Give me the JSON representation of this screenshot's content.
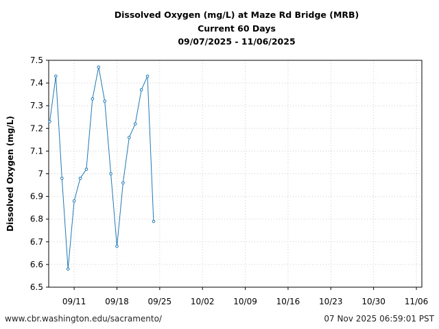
{
  "chart_data": {
    "type": "line",
    "title": [
      "Dissolved Oxygen (mg/L) at Maze Rd Bridge (MRB)",
      "Current 60 Days",
      "09/07/2025 - 11/06/2025"
    ],
    "xlabel": "",
    "ylabel": "Dissolved Oxygen (mg/L)",
    "ylim": [
      6.5,
      7.5
    ],
    "xlim": [
      "2025-09-06T20:00",
      "2025-11-06T21:30"
    ],
    "yticks": [
      6.5,
      6.6,
      6.7,
      6.8,
      6.9,
      7.0,
      7.1,
      7.2,
      7.3,
      7.4,
      7.5
    ],
    "ytick_labels": [
      "6.5",
      "6.6",
      "6.7",
      "6.8",
      "6.9",
      "7",
      "7.1",
      "7.2",
      "7.3",
      "7.4",
      "7.5"
    ],
    "xticks": [
      "2025-09-11",
      "2025-09-18",
      "2025-09-25",
      "2025-10-02",
      "2025-10-09",
      "2025-10-16",
      "2025-10-23",
      "2025-10-30",
      "2025-11-06"
    ],
    "xtick_labels": [
      "09/11",
      "09/18",
      "09/25",
      "10/02",
      "10/09",
      "10/16",
      "10/23",
      "10/30",
      "11/06"
    ],
    "grid": true,
    "color": "#1f77b4",
    "x": [
      "2025-09-07",
      "2025-09-08",
      "2025-09-09",
      "2025-09-10",
      "2025-09-11",
      "2025-09-12",
      "2025-09-13",
      "2025-09-14",
      "2025-09-15",
      "2025-09-16",
      "2025-09-17",
      "2025-09-18",
      "2025-09-19",
      "2025-09-20",
      "2025-09-21",
      "2025-09-22",
      "2025-09-23",
      "2025-09-24"
    ],
    "values": [
      7.23,
      7.43,
      6.98,
      6.58,
      6.88,
      6.98,
      7.02,
      7.33,
      7.47,
      7.32,
      7.0,
      6.68,
      6.96,
      7.16,
      7.22,
      7.37,
      7.43,
      6.79
    ]
  },
  "footer": {
    "left": "www.cbr.washington.edu/sacramento/",
    "right": "07 Nov 2025 06:59:01 PST"
  }
}
